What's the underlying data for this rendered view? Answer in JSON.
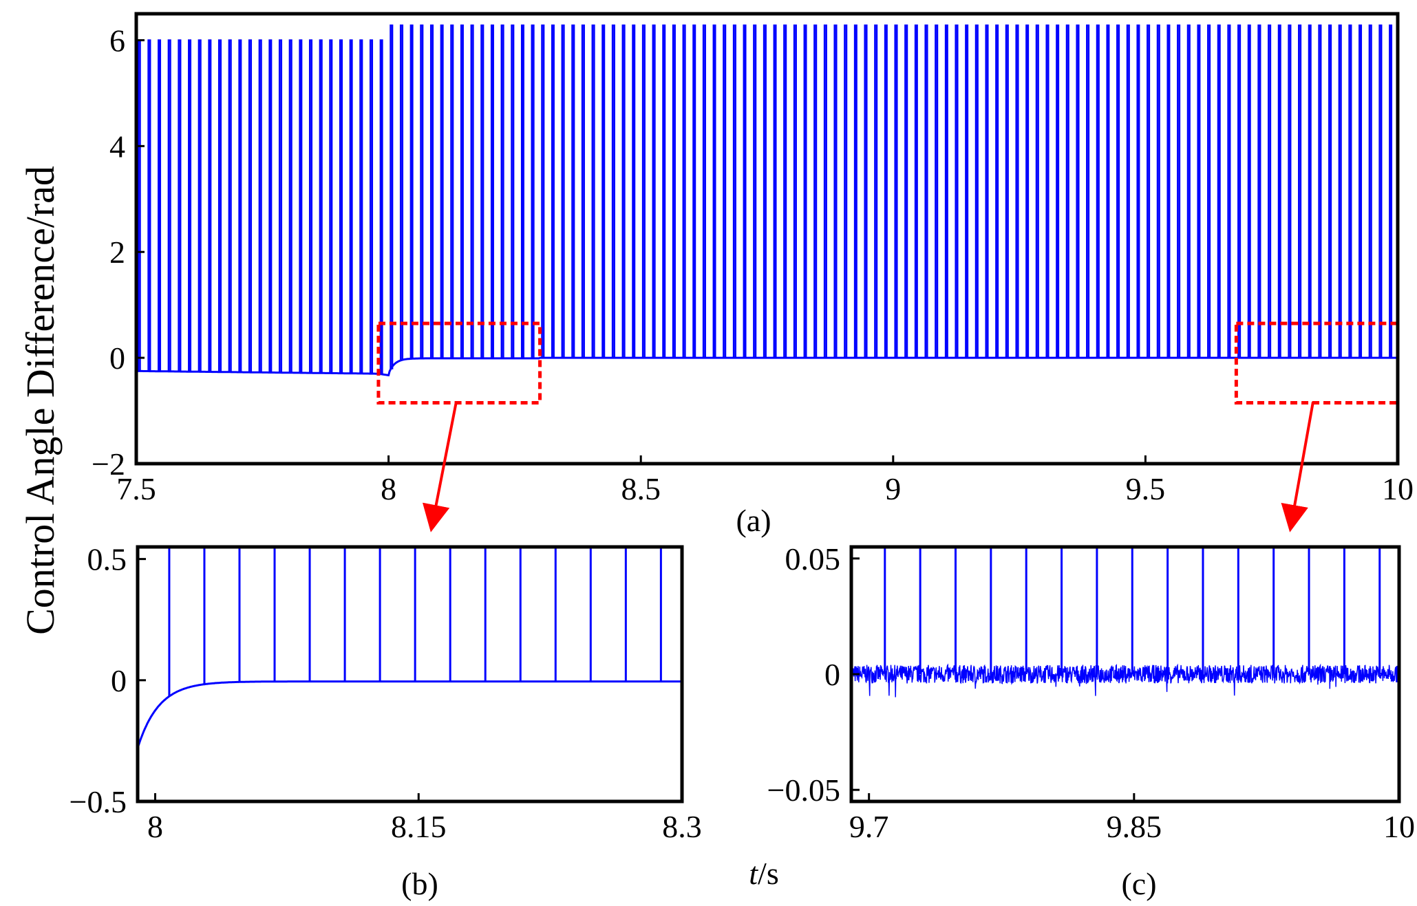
{
  "y_label": "Control Angle Difference/rad",
  "x_label": {
    "italic": "t",
    "unit": "/s"
  },
  "colors": {
    "signal": "#0000ff",
    "zoom_box": "#ff0000",
    "axes": "#000000"
  },
  "chart_data": [
    {
      "id": "a",
      "type": "line",
      "caption": "(a)",
      "xlim": [
        7.5,
        10
      ],
      "ylim": [
        -2,
        6.5
      ],
      "xticks": [
        7.5,
        8,
        8.5,
        9,
        9.5,
        10
      ],
      "xtick_labels": [
        "7.5",
        "8",
        "8.5",
        "9",
        "9.5",
        "10"
      ],
      "yticks": [
        -2,
        0,
        2,
        4,
        6
      ],
      "ytick_labels": [
        "−2",
        "0",
        "2",
        "4",
        "6"
      ],
      "baseline_segments": [
        {
          "x": [
            7.5,
            7.98
          ],
          "y": [
            -0.25,
            -0.3
          ]
        },
        {
          "x": [
            7.98,
            8.0
          ],
          "y": [
            -0.3,
            -0.33
          ]
        },
        {
          "x": [
            8.0,
            8.3
          ],
          "y": [
            -0.3,
            -0.01
          ]
        },
        {
          "x": [
            8.3,
            10.0
          ],
          "y": [
            0.0,
            0.0
          ]
        }
      ],
      "spike_period": 0.02,
      "spike_peaks": [
        {
          "x": [
            7.5,
            8.0
          ],
          "y": 6.0
        },
        {
          "x": [
            8.0,
            10.0
          ],
          "y": 6.28
        }
      ],
      "zoom_boxes": [
        {
          "x": [
            7.98,
            8.3
          ],
          "y": [
            -0.85,
            0.65
          ]
        },
        {
          "x": [
            9.68,
            10.0
          ],
          "y": [
            -0.85,
            0.65
          ]
        }
      ]
    },
    {
      "id": "b",
      "type": "line",
      "caption": "(b)",
      "xlim": [
        7.99,
        8.3
      ],
      "ylim": [
        -0.5,
        0.55
      ],
      "xticks": [
        8,
        8.15,
        8.3
      ],
      "xtick_labels": [
        "8",
        "8.15",
        "8.3"
      ],
      "yticks": [
        -0.5,
        0,
        0.5
      ],
      "ytick_labels": [
        "−0.5",
        "0",
        "0.5"
      ],
      "baseline_segments": [
        {
          "x": [
            7.99,
            8.3
          ],
          "y_start": -0.28,
          "y_end": -0.005,
          "decay": 0.012
        }
      ],
      "spike_period": 0.02,
      "spike_x_start": 8.008,
      "spike_peak": 0.55
    },
    {
      "id": "c",
      "type": "line",
      "caption": "(c)",
      "xlim": [
        9.69,
        10.0
      ],
      "ylim": [
        -0.055,
        0.055
      ],
      "xticks": [
        9.7,
        9.85,
        10
      ],
      "xtick_labels": [
        "9.7",
        "9.85",
        "10"
      ],
      "yticks": [
        -0.05,
        0,
        0.05
      ],
      "ytick_labels": [
        "−0.05",
        "0",
        "0.05"
      ],
      "baseline_segments": [
        {
          "x": [
            9.69,
            10.0
          ],
          "y": [
            0.0,
            0.0
          ],
          "noise": 0.004
        }
      ],
      "spike_period": 0.02,
      "spike_x_start": 9.709,
      "spike_peak": 0.055
    }
  ]
}
